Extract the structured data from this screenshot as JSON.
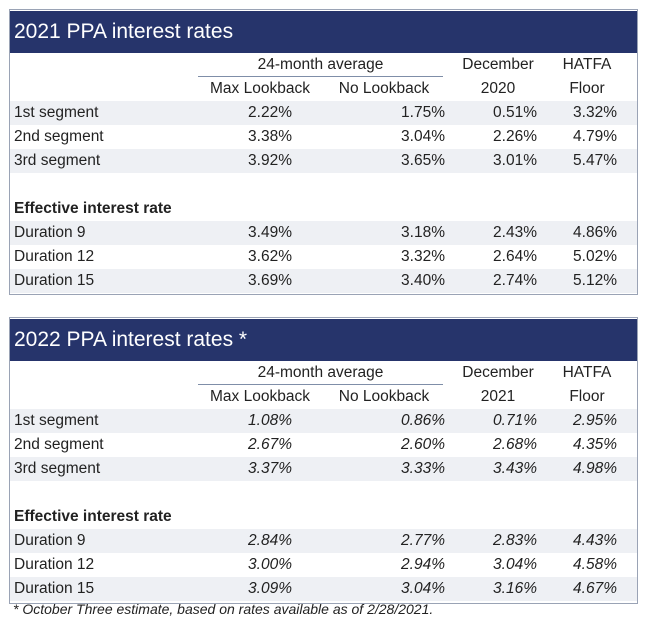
{
  "tables": [
    {
      "title": "2021 PPA interest rates",
      "header": {
        "group_label": "24-month average",
        "col1": "Max Lookback",
        "col2": "No Lookback",
        "col3_top": "December",
        "col3_bottom": "2020",
        "col4_top": "HATFA",
        "col4_bottom": "Floor"
      },
      "segments": [
        {
          "label": "1st segment",
          "v": [
            "2.22%",
            "1.75%",
            "0.51%",
            "3.32%"
          ]
        },
        {
          "label": "2nd segment",
          "v": [
            "3.38%",
            "3.04%",
            "2.26%",
            "4.79%"
          ]
        },
        {
          "label": "3rd segment",
          "v": [
            "3.92%",
            "3.65%",
            "3.01%",
            "5.47%"
          ]
        }
      ],
      "section_label": "Effective interest rate",
      "durations": [
        {
          "label": "Duration 9",
          "v": [
            "3.49%",
            "3.18%",
            "2.43%",
            "4.86%"
          ]
        },
        {
          "label": "Duration 12",
          "v": [
            "3.62%",
            "3.32%",
            "2.64%",
            "5.02%"
          ]
        },
        {
          "label": "Duration 15",
          "v": [
            "3.69%",
            "3.40%",
            "2.74%",
            "5.12%"
          ]
        }
      ]
    },
    {
      "title": "2022 PPA interest rates *",
      "header": {
        "group_label": "24-month average",
        "col1": "Max Lookback",
        "col2": "No Lookback",
        "col3_top": "December",
        "col3_bottom": "2021",
        "col4_top": "HATFA",
        "col4_bottom": "Floor"
      },
      "segments": [
        {
          "label": "1st segment",
          "v": [
            "1.08%",
            "0.86%",
            "0.71%",
            "2.95%"
          ]
        },
        {
          "label": "2nd segment",
          "v": [
            "2.67%",
            "2.60%",
            "2.68%",
            "4.35%"
          ]
        },
        {
          "label": "3rd segment",
          "v": [
            "3.37%",
            "3.33%",
            "3.43%",
            "4.98%"
          ]
        }
      ],
      "section_label": "Effective interest rate",
      "durations": [
        {
          "label": "Duration 9",
          "v": [
            "2.84%",
            "2.77%",
            "2.83%",
            "4.43%"
          ]
        },
        {
          "label": "Duration 12",
          "v": [
            "3.00%",
            "2.94%",
            "3.04%",
            "4.58%"
          ]
        },
        {
          "label": "Duration 15",
          "v": [
            "3.09%",
            "3.04%",
            "3.16%",
            "4.67%"
          ]
        }
      ]
    }
  ],
  "footnote": "* October Three estimate, based on rates available as of 2/28/2021.",
  "colors": {
    "title_bar": "#26346b",
    "row_shade": "#eef0f4",
    "border": "#9aa3b5"
  }
}
